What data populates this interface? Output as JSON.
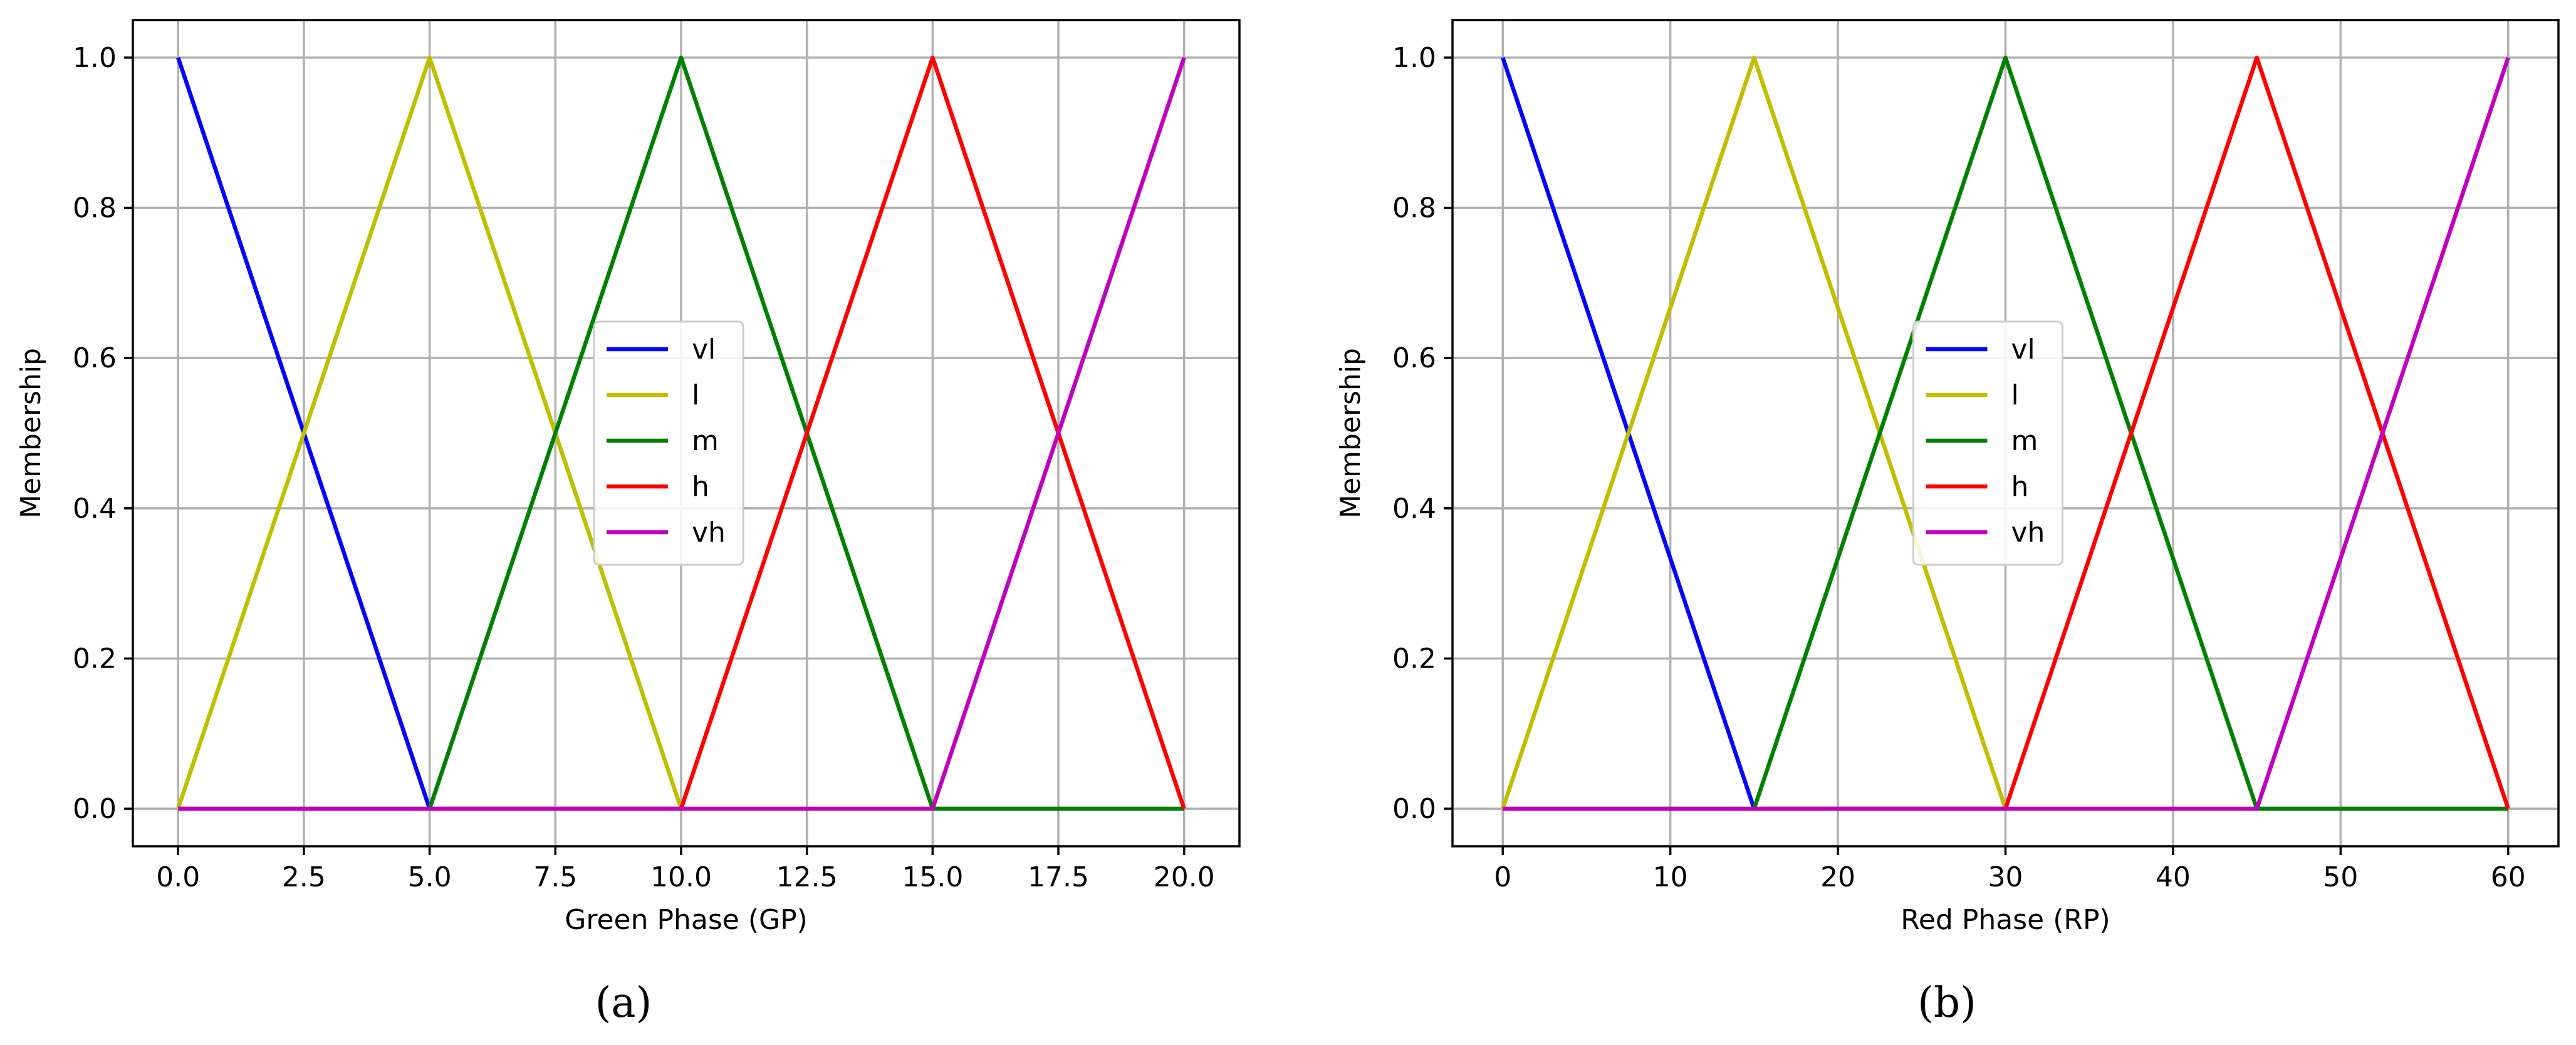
{
  "chart_data": [
    {
      "type": "line",
      "caption": "(a)",
      "xlabel": "Green Phase (GP)",
      "ylabel": "Membership",
      "xlim": [
        -0.9,
        21.1
      ],
      "ylim": [
        -0.05,
        1.05
      ],
      "xticks": [
        0,
        2.5,
        5,
        7.5,
        10,
        12.5,
        15,
        17.5,
        20
      ],
      "xtick_labels": [
        "0.0",
        "2.5",
        "5.0",
        "7.5",
        "10.0",
        "12.5",
        "15.0",
        "17.5",
        "20.0"
      ],
      "yticks": [
        0,
        0.2,
        0.4,
        0.6,
        0.8,
        1.0
      ],
      "ytick_labels": [
        "0.0",
        "0.2",
        "0.4",
        "0.6",
        "0.8",
        "1.0"
      ],
      "grid": true,
      "legend_position": "center",
      "series": [
        {
          "name": "vl",
          "color": "#0000ff",
          "x": [
            0,
            5,
            20
          ],
          "y": [
            1,
            0,
            0
          ]
        },
        {
          "name": "l",
          "color": "#bfbf00",
          "x": [
            0,
            5,
            10,
            20
          ],
          "y": [
            0,
            1,
            0,
            0
          ]
        },
        {
          "name": "m",
          "color": "#008000",
          "x": [
            0,
            5,
            10,
            15,
            20
          ],
          "y": [
            0,
            0,
            1,
            0,
            0
          ]
        },
        {
          "name": "h",
          "color": "#ff0000",
          "x": [
            0,
            10,
            15,
            20
          ],
          "y": [
            0,
            0,
            1,
            0
          ]
        },
        {
          "name": "vh",
          "color": "#bf00bf",
          "x": [
            0,
            15,
            20
          ],
          "y": [
            0,
            0,
            1
          ]
        }
      ]
    },
    {
      "type": "line",
      "caption": "(b)",
      "xlabel": "Red Phase (RP)",
      "ylabel": "Membership",
      "xlim": [
        -3,
        63
      ],
      "ylim": [
        -0.05,
        1.05
      ],
      "xticks": [
        0,
        10,
        20,
        30,
        40,
        50,
        60
      ],
      "xtick_labels": [
        "0",
        "10",
        "20",
        "30",
        "40",
        "50",
        "60"
      ],
      "yticks": [
        0,
        0.2,
        0.4,
        0.6,
        0.8,
        1.0
      ],
      "ytick_labels": [
        "0.0",
        "0.2",
        "0.4",
        "0.6",
        "0.8",
        "1.0"
      ],
      "grid": true,
      "legend_position": "center",
      "series": [
        {
          "name": "vl",
          "color": "#0000ff",
          "x": [
            0,
            15,
            60
          ],
          "y": [
            1,
            0,
            0
          ]
        },
        {
          "name": "l",
          "color": "#bfbf00",
          "x": [
            0,
            15,
            30,
            60
          ],
          "y": [
            0,
            1,
            0,
            0
          ]
        },
        {
          "name": "m",
          "color": "#008000",
          "x": [
            0,
            15,
            30,
            45,
            60
          ],
          "y": [
            0,
            0,
            1,
            0,
            0
          ]
        },
        {
          "name": "h",
          "color": "#ff0000",
          "x": [
            0,
            30,
            45,
            60
          ],
          "y": [
            0,
            0,
            1,
            0
          ]
        },
        {
          "name": "vh",
          "color": "#bf00bf",
          "x": [
            0,
            45,
            60
          ],
          "y": [
            0,
            0,
            1
          ]
        }
      ]
    }
  ]
}
